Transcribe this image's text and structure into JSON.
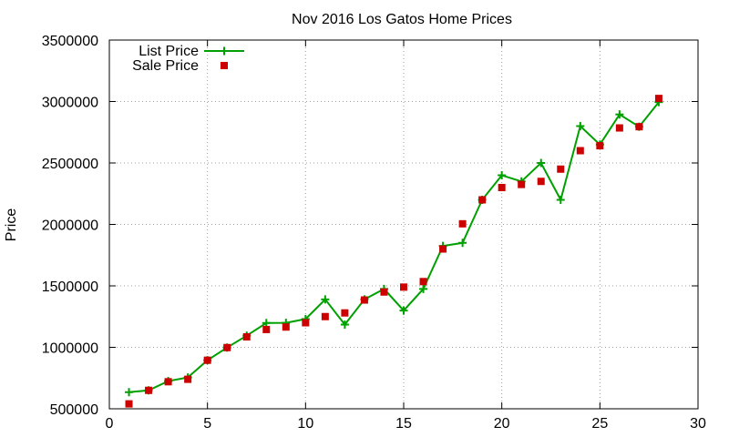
{
  "chart_data": {
    "type": "line",
    "title": "Nov 2016 Los Gatos Home Prices",
    "xlabel": "",
    "ylabel": "Price",
    "xlim": [
      0,
      30
    ],
    "ylim": [
      500000,
      3500000
    ],
    "xticks": [
      0,
      5,
      10,
      15,
      20,
      25,
      30
    ],
    "yticks": [
      500000,
      1000000,
      1500000,
      2000000,
      2500000,
      3000000,
      3500000
    ],
    "grid": true,
    "legend_position": "top-left",
    "series": [
      {
        "name": "List Price",
        "style": "line+cross",
        "color": "#00a000",
        "x": [
          1,
          2,
          3,
          4,
          5,
          6,
          7,
          8,
          9,
          10,
          11,
          12,
          13,
          14,
          15,
          16,
          17,
          18,
          19,
          20,
          21,
          22,
          23,
          24,
          25,
          26,
          27,
          28
        ],
        "values": [
          635000,
          650000,
          725000,
          755000,
          895000,
          998000,
          1095000,
          1198000,
          1199000,
          1230000,
          1390000,
          1185000,
          1390000,
          1475000,
          1299000,
          1475000,
          1825000,
          1850000,
          2200000,
          2400000,
          2350000,
          2500000,
          2200000,
          2800000,
          2650000,
          2895000,
          2795000,
          2995000
        ]
      },
      {
        "name": "Sale Price",
        "style": "square",
        "color": "#cc0000",
        "x": [
          1,
          2,
          3,
          4,
          5,
          6,
          7,
          8,
          9,
          10,
          11,
          12,
          13,
          14,
          15,
          16,
          17,
          18,
          19,
          20,
          21,
          22,
          23,
          24,
          25,
          26,
          27,
          28
        ],
        "values": [
          540000,
          650000,
          720000,
          740000,
          895000,
          998000,
          1085000,
          1145000,
          1165000,
          1200000,
          1250000,
          1280000,
          1385000,
          1450000,
          1490000,
          1535000,
          1800000,
          2005000,
          2200000,
          2300000,
          2325000,
          2350000,
          2450000,
          2600000,
          2640000,
          2785000,
          2795000,
          3025000
        ]
      }
    ]
  }
}
